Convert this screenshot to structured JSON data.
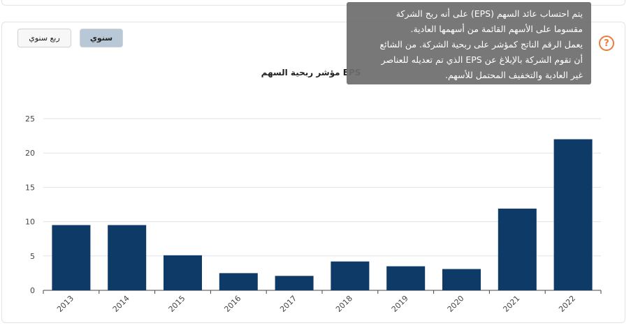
{
  "buttons": {
    "quarterly": "ربع سنوي",
    "annual": "سنوي"
  },
  "help": {
    "icon_glyph": "?",
    "tooltip_lines": [
      "يتم احتساب عائد السهم (EPS) على أنه ربح الشركة",
      "مقسوما على الأسهم القائمة من أسهمها العادية.",
      "يعمل الرقم الناتج كمؤشر على ربحية الشركة. من الشائع",
      "أن تقوم الشركة بالإبلاغ عن EPS الذي تم تعديله للعناصر",
      "غير العادية والتخفيف المحتمل للأسهم."
    ]
  },
  "colors": {
    "bar": "#0d3a66",
    "accent": "#f07a3a",
    "active_button": "#b9c8d6"
  },
  "chart_data": {
    "type": "bar",
    "title": "مؤشر ربحية السهم EPS",
    "xlabel": "",
    "ylabel": "",
    "categories": [
      "2013",
      "2014",
      "2015",
      "2016",
      "2017",
      "2018",
      "2019",
      "2020",
      "2021",
      "2022"
    ],
    "values": [
      9.5,
      9.5,
      5.1,
      2.5,
      2.1,
      4.2,
      3.5,
      3.1,
      11.9,
      22.0
    ],
    "ylim": [
      0,
      25
    ],
    "yticks": [
      "0",
      "5",
      "10",
      "15",
      "20",
      "25"
    ],
    "grid": true,
    "legend": "none"
  }
}
